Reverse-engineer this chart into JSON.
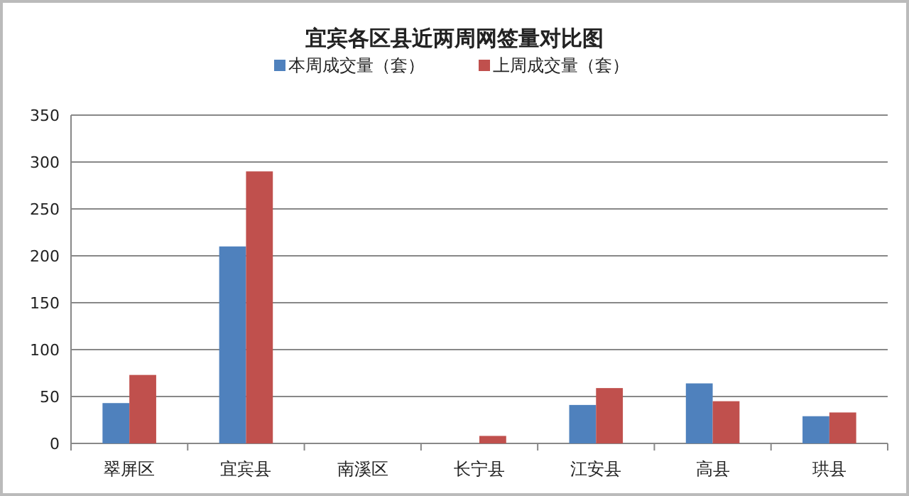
{
  "chart_data": {
    "type": "bar",
    "title": "宜宾各区县近两周网签量对比图",
    "categories": [
      "翠屏区",
      "宜宾县",
      "南溪区",
      "长宁县",
      "江安县",
      "高县",
      "珙县"
    ],
    "series": [
      {
        "name": "本周成交量（套）",
        "color": "#4f81bd",
        "values": [
          43,
          210,
          0,
          0,
          41,
          64,
          29
        ]
      },
      {
        "name": "上周成交量（套）",
        "color": "#c0504d",
        "values": [
          73,
          290,
          0,
          8,
          59,
          45,
          33
        ]
      }
    ],
    "ylim": [
      0,
      350
    ],
    "yticks": [
      0,
      50,
      100,
      150,
      200,
      250,
      300,
      350
    ],
    "grid": "y",
    "legend": "top"
  }
}
